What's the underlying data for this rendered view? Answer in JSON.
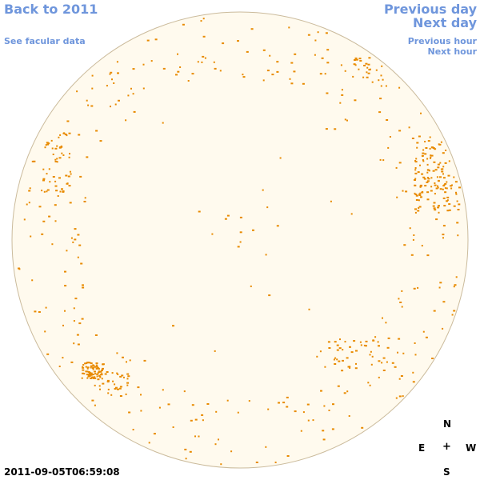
{
  "nav": {
    "back_label": "Back to 2011",
    "facular_label": "See facular data",
    "prev_day_label": "Previous day",
    "next_day_label": "Next day",
    "prev_hour_label": "Previous hour",
    "next_hour_label": "Next hour"
  },
  "compass": {
    "north": "N",
    "east": "E",
    "center": "+",
    "west": "W",
    "south": "S"
  },
  "timestamp": "2011-09-05T06:59:08",
  "colors": {
    "link": "#6f96dc",
    "disk_fill": "#fffaee",
    "disk_edge": "#cbbb9c",
    "speckle": "#e88a00"
  }
}
